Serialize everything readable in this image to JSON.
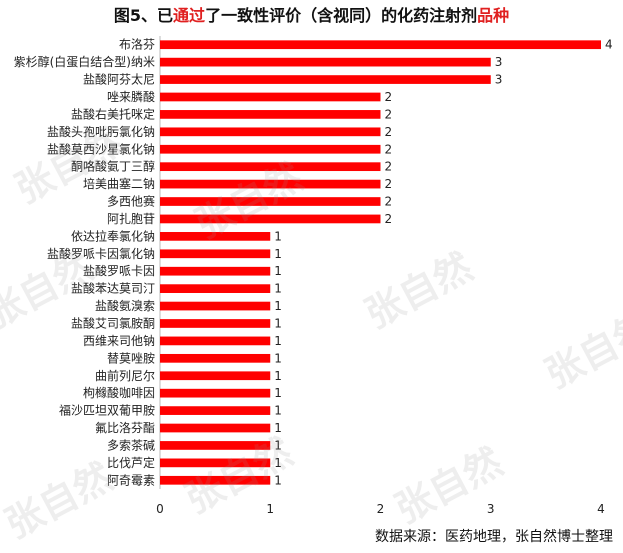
{
  "title_parts": [
    "图5、已",
    "通过",
    "了一致性评价（含视同）的化药注射剂",
    "品种"
  ],
  "source": "数据来源：医药地理，张自然博士整理",
  "watermark": "张自然",
  "chart_data": {
    "type": "bar",
    "orientation": "horizontal",
    "categories": [
      "布洛芬",
      "紫杉醇(白蛋白结合型)纳米",
      "盐酸阿芬太尼",
      "唑来膦酸",
      "盐酸右美托咪定",
      "盐酸头孢吡肟氯化钠",
      "盐酸莫西沙星氯化钠",
      "酮咯酸氨丁三醇",
      "培美曲塞二钠",
      "多西他赛",
      "阿扎胞苷",
      "依达拉奉氯化钠",
      "盐酸罗哌卡因氯化钠",
      "盐酸罗哌卡因",
      "盐酸苯达莫司汀",
      "盐酸氨溴索",
      "盐酸艾司氯胺酮",
      "西维来司他钠",
      "替莫唑胺",
      "曲前列尼尔",
      "枸橼酸咖啡因",
      "福沙匹坦双葡甲胺",
      "氟比洛芬酯",
      "多索茶碱",
      "比伐芦定",
      "阿奇霉素"
    ],
    "values": [
      4,
      3,
      3,
      2,
      2,
      2,
      2,
      2,
      2,
      2,
      2,
      1,
      1,
      1,
      1,
      1,
      1,
      1,
      1,
      1,
      1,
      1,
      1,
      1,
      1,
      1
    ],
    "xlim": [
      0,
      4
    ],
    "xticks": [
      0,
      1,
      2,
      3,
      4
    ],
    "bar_color": "#ff0000",
    "grid": false
  }
}
